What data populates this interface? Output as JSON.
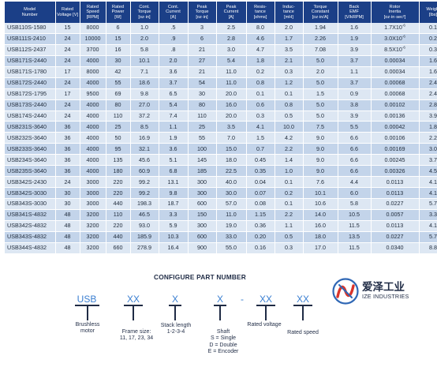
{
  "table": {
    "headers": [
      [
        "Model",
        "Number"
      ],
      [
        "Rated",
        "Voltage [V]"
      ],
      [
        "Rated",
        "Speed",
        "[RPM]"
      ],
      [
        "Rated",
        "Power",
        "[W]"
      ],
      [
        "Cont.",
        "Torque",
        "[oz·in]"
      ],
      [
        "Cont.",
        "Current",
        "[A]"
      ],
      [
        "Peak",
        "Torque",
        "[oz·in]"
      ],
      [
        "Peak",
        "Current",
        "[A]"
      ],
      [
        "Resis-",
        "tance",
        "[ohms]"
      ],
      [
        "Induc-",
        "tance",
        "[mH]"
      ],
      [
        "Torque",
        "Constant",
        "[oz·in/A]"
      ],
      [
        "Back",
        "EMF",
        "[V/kRPM]"
      ],
      [
        "Rotor",
        "Inertia",
        "[oz·in·sec²]"
      ],
      [
        "Weight",
        "[lbs]"
      ]
    ],
    "rows": [
      [
        "USB110S-1580",
        "15",
        "8000",
        "6",
        "1.0",
        ".5",
        "3",
        "2.5",
        "8.0",
        "2.0",
        "1.94",
        "1.6",
        "1.7X10",
        "0.1"
      ],
      [
        "USB111S-2410",
        "24",
        "10000",
        "15",
        "2.0",
        ".9",
        "6",
        "2.8",
        "4.6",
        "1.7",
        "2.26",
        "1.9",
        "3.0X10",
        "0.2"
      ],
      [
        "USB112S-2437",
        "24",
        "3700",
        "16",
        "5.8",
        ".8",
        "21",
        "3.0",
        "4.7",
        "3.5",
        "7.08",
        "3.9",
        "8.5X10",
        "0.3"
      ],
      [
        "USB171S-2440",
        "24",
        "4000",
        "30",
        "10.1",
        "2.0",
        "27",
        "5.4",
        "1.8",
        "2.1",
        "5.0",
        "3.7",
        "0.00034",
        "1.6"
      ],
      [
        "USB171S-1780",
        "17",
        "8000",
        "42",
        "7.1",
        "3.6",
        "21",
        "11.0",
        "0.2",
        "0.3",
        "2.0",
        "1.1",
        "0.00034",
        "1.6"
      ],
      [
        "USB172S-2440",
        "24",
        "4000",
        "55",
        "18.6",
        "3.7",
        "54",
        "11.0",
        "0.8",
        "1.2",
        "5.0",
        "3.7",
        "0.00068",
        "2.4"
      ],
      [
        "USB172S-1795",
        "17",
        "9500",
        "69",
        "9.8",
        "6.5",
        "30",
        "20.0",
        "0.1",
        "0.1",
        "1.5",
        "0.9",
        "0.00068",
        "2.4"
      ],
      [
        "USB173S-2440",
        "24",
        "4000",
        "80",
        "27.0",
        "5.4",
        "80",
        "16.0",
        "0.6",
        "0.8",
        "5.0",
        "3.8",
        "0.00102",
        "2.8"
      ],
      [
        "USB174S-2440",
        "24",
        "4000",
        "110",
        "37.2",
        "7.4",
        "110",
        "20.0",
        "0.3",
        "0.5",
        "5.0",
        "3.9",
        "0.00136",
        "3.9"
      ],
      [
        "USB231S-3640",
        "36",
        "4000",
        "25",
        "8.5",
        "1.1",
        "25",
        "3.5",
        "4.1",
        "10.0",
        "7.5",
        "5.5",
        "0.00042",
        "1.8"
      ],
      [
        "USB232S-3640",
        "36",
        "4000",
        "50",
        "16.9",
        "1.9",
        "55",
        "7.0",
        "1.5",
        "4.2",
        "9.0",
        "6.6",
        "0.00106",
        "2.2"
      ],
      [
        "USB233S-3640",
        "36",
        "4000",
        "95",
        "32.1",
        "3.6",
        "100",
        "15.0",
        "0.7",
        "2.2",
        "9.0",
        "6.6",
        "0.00169",
        "3.0"
      ],
      [
        "USB234S-3640",
        "36",
        "4000",
        "135",
        "45.6",
        "5.1",
        "145",
        "18.0",
        "0.45",
        "1.4",
        "9.0",
        "6.6",
        "0.00245",
        "3.7"
      ],
      [
        "USB235S-3640",
        "36",
        "4000",
        "180",
        "60.9",
        "6.8",
        "185",
        "22.5",
        "0.35",
        "1.0",
        "9.0",
        "6.6",
        "0.00326",
        "4.5"
      ],
      [
        "USB342S-2430",
        "24",
        "3000",
        "220",
        "99.2",
        "13.1",
        "300",
        "40.0",
        "0.04",
        "0.1",
        "7.6",
        "4.4",
        "0.0113",
        "4.1"
      ],
      [
        "USB342S-3030",
        "30",
        "3000",
        "220",
        "99.2",
        "9.8",
        "300",
        "30.0",
        "0.07",
        "0.2",
        "10.1",
        "6.0",
        "0.0113",
        "4.1"
      ],
      [
        "USB343S-3030",
        "30",
        "3000",
        "440",
        "198.3",
        "18.7",
        "600",
        "57.0",
        "0.08",
        "0.1",
        "10.6",
        "5.8",
        "0.0227",
        "5.7"
      ],
      [
        "USB341S-4832",
        "48",
        "3200",
        "110",
        "46.5",
        "3.3",
        "150",
        "11.0",
        "1.15",
        "2.2",
        "14.0",
        "10.5",
        "0.0057",
        "3.3"
      ],
      [
        "USB342S-4832",
        "48",
        "3200",
        "220",
        "93.0",
        "5.9",
        "300",
        "19.0",
        "0.36",
        "1.1",
        "16.0",
        "11.5",
        "0.0113",
        "4.1"
      ],
      [
        "USB343S-4832",
        "48",
        "3200",
        "440",
        "185.9",
        "10.3",
        "600",
        "33.0",
        "0.20",
        "0.5",
        "18.0",
        "13.5",
        "0.0227",
        "5.7"
      ],
      [
        "USB344S-4832",
        "48",
        "3200",
        "660",
        "278.9",
        "16.4",
        "900",
        "55.0",
        "0.16",
        "0.3",
        "17.0",
        "11.5",
        "0.0340",
        "8.8"
      ]
    ],
    "exponents": {
      "0": "-6",
      "1": "-6",
      "2": "-6"
    }
  },
  "configurator": {
    "title": "CONFIGURE PART NUMBER",
    "segments": [
      "USB",
      "XX",
      "X",
      "X",
      "-",
      "XX",
      "XX"
    ],
    "captions": {
      "series": [
        "Brushless",
        "motor"
      ],
      "frame": [
        "Frame size:",
        "11, 17, 23, 34"
      ],
      "stack": [
        "Stack length",
        "1-2-3-4"
      ],
      "shaft": [
        "Shaft",
        "S = Single",
        "D = Double",
        "E = Encoder"
      ],
      "voltage": [
        "Rated voltage"
      ],
      "speed": [
        "Rated speed"
      ]
    }
  },
  "logo": {
    "name_cn": "爱泽工业",
    "name_en": "IZE INDUSTRIES",
    "colors": {
      "blue": "#2f67b5",
      "red": "#d9342b"
    }
  },
  "colors": {
    "header_bg": "#1b3f87",
    "row_light": "#dde7f3",
    "row_dark": "#c3d4ea",
    "code_blue": "#3b7fd1"
  }
}
